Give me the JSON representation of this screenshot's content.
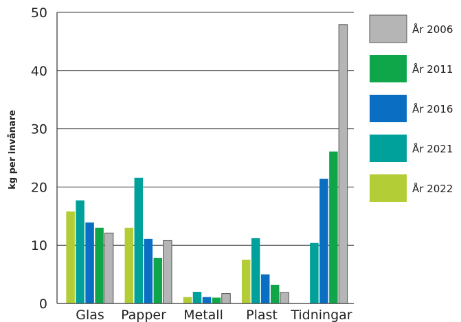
{
  "chart_data": {
    "type": "bar",
    "ylabel": "kg per invånare",
    "ylim": [
      0,
      50
    ],
    "yticks": [
      0,
      10,
      20,
      30,
      40,
      50
    ],
    "grid": true,
    "legend_position": "right",
    "categories": [
      "Glas",
      "Papper",
      "Metall",
      "Plast",
      "Tidningar"
    ],
    "series": [
      {
        "name": "År 2022",
        "color": "#b3cd36",
        "values": [
          15.8,
          13.0,
          1.1,
          7.5,
          0
        ]
      },
      {
        "name": "År 2021",
        "color": "#00a19a",
        "values": [
          17.7,
          21.6,
          2.0,
          11.2,
          10.4
        ]
      },
      {
        "name": "År 2016",
        "color": "#0a6fc2",
        "values": [
          13.9,
          11.1,
          1.1,
          5.0,
          21.4
        ]
      },
      {
        "name": "År 2011",
        "color": "#0fa64a",
        "values": [
          13.0,
          7.8,
          1.0,
          3.2,
          26.1
        ]
      },
      {
        "name": "År 2006",
        "color": "#b5b5b5",
        "values": [
          12.1,
          10.8,
          1.7,
          1.9,
          47.9
        ]
      }
    ],
    "legend_order": [
      "År 2006",
      "År 2011",
      "År 2016",
      "År 2021",
      "År 2022"
    ]
  }
}
